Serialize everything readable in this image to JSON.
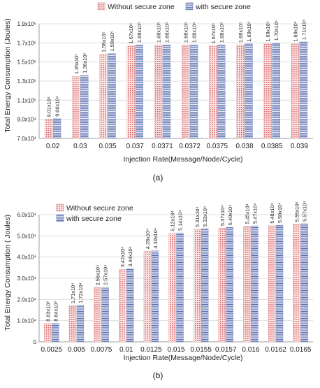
{
  "chart_data": [
    {
      "type": "bar",
      "panel_label": "(a)",
      "xlabel": "Injection Rate(Message/Node/Cycle)",
      "ylabel": "Total Energy Consumption (Joules)",
      "categories": [
        "0.02",
        "0.03",
        "0.035",
        "0.037",
        "0.0371",
        "0.0372",
        "0.0375",
        "0.038",
        "0.0385",
        "0.039"
      ],
      "series": [
        {
          "name": "Without secure zone",
          "color": "#e8a0a0",
          "values": [
            90100,
            135000,
            158000,
            167000,
            168000,
            168000,
            167000,
            168000,
            169000,
            169000
          ],
          "labels": [
            "9.01x10⁴",
            "1.35x10⁵",
            "1.58x10⁵",
            "1.67x10⁵",
            "1.68x10⁵",
            "1.68x10⁵",
            "1.67x10⁵",
            "1.68x10⁵",
            "1.69x10⁵",
            "1.69x10⁵"
          ]
        },
        {
          "name": "with secure zone",
          "color": "#8090c0",
          "values": [
            90600,
            136000,
            159000,
            168000,
            168000,
            168000,
            168000,
            169000,
            170000,
            171000
          ],
          "labels": [
            "9.06x10⁴",
            "1.36x10⁵",
            "1.59x10⁵",
            "1.68x10⁵",
            "1.68x10⁵",
            "1.68x10⁵",
            "1.68x10⁵",
            "1.69x10⁵",
            "1.70x10⁵",
            "1.71x10⁵"
          ]
        }
      ],
      "ylim": [
        70000,
        190000
      ],
      "yticks": [
        {
          "value": 70000,
          "label": "7.0x10⁴"
        },
        {
          "value": 90000,
          "label": "9.0x10⁴"
        },
        {
          "value": 110000,
          "label": "1.1x10⁵"
        },
        {
          "value": 130000,
          "label": "1.3x10⁵"
        },
        {
          "value": 150000,
          "label": "1.5x10⁵"
        },
        {
          "value": 170000,
          "label": "1.7x10⁵"
        },
        {
          "value": 190000,
          "label": "1.9x10⁵"
        }
      ],
      "grid": true,
      "legend_position": "top"
    },
    {
      "type": "bar",
      "panel_label": "(b)",
      "xlabel": "Injection Rate(Message/Node/Cycle)",
      "ylabel": "Total Energy Consumption ( Joules)",
      "categories": [
        "0.0025",
        "0.005",
        "0.0075",
        "0.01",
        "0.0125",
        "0.015",
        "0.0155",
        "0.0157",
        "0.016",
        "0.0162",
        "0.0165"
      ],
      "series": [
        {
          "name": "Without secure zone",
          "color": "#e8a0a0",
          "values": [
            8630,
            17100,
            25600,
            34200,
            42800,
            51200,
            53100,
            53700,
            54500,
            54800,
            55500
          ],
          "labels": [
            "8.63x10³",
            "1.71x10⁴",
            "2.56x10⁴",
            "3.42x10⁴",
            "4.28x10⁴",
            "5.12x10⁴",
            "5.31x10⁴",
            "5.37x10⁴",
            "5.45x10⁴",
            "5.48x10⁴",
            "5.55x10⁴"
          ]
        },
        {
          "name": "with secure zone",
          "color": "#8090c0",
          "values": [
            8640,
            17200,
            25700,
            34400,
            43000,
            51400,
            53300,
            54000,
            54700,
            55000,
            55700
          ],
          "labels": [
            "8.64x10³",
            "1.72x10⁴",
            "2.57x10⁴",
            "3.44x10⁴",
            "4.30x10⁴",
            "5.14x10⁴",
            "5.33x10⁴",
            "5.40x10⁴",
            "5.47x10⁴",
            "5.50x10⁴",
            "5.57x10⁴"
          ]
        }
      ],
      "ylim": [
        0,
        60000
      ],
      "yticks": [
        {
          "value": 0,
          "label": "0"
        },
        {
          "value": 10000,
          "label": "1.0x10⁴"
        },
        {
          "value": 20000,
          "label": "2.0x10⁴"
        },
        {
          "value": 30000,
          "label": "3.0x10⁴"
        },
        {
          "value": 40000,
          "label": "4.0x10⁴"
        },
        {
          "value": 50000,
          "label": "5.0x10⁴"
        },
        {
          "value": 60000,
          "label": "6.0x10⁴"
        }
      ],
      "grid": true,
      "legend_position": "top-left"
    }
  ]
}
